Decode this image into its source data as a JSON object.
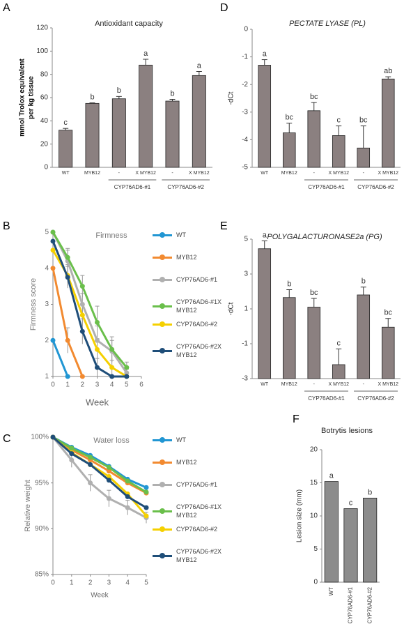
{
  "chart_data": [
    {
      "type": "bar",
      "panel": "A",
      "title": "Antioxidant capacity",
      "ylabel": [
        "mmol Trolox equivalent",
        "per kg tissue"
      ],
      "categories": [
        "WT",
        "MYB12",
        "-",
        "X MYB12",
        "-",
        "X MYB12"
      ],
      "groups": [
        {
          "name": "CYP76AD6-#1",
          "members": [
            2,
            3
          ]
        },
        {
          "name": "CYP76AD6-#2",
          "members": [
            4,
            5
          ]
        }
      ],
      "values": [
        32,
        55,
        59,
        88,
        57,
        79
      ],
      "errors": [
        1.5,
        0.5,
        2,
        5,
        1.5,
        3.5
      ],
      "annotations": [
        "c",
        "b",
        "b",
        "a",
        "b",
        "a"
      ],
      "color": "#8b8080",
      "ylim": [
        0,
        120
      ],
      "yticks": [
        0,
        20,
        40,
        60,
        80,
        100,
        120
      ]
    },
    {
      "type": "line",
      "panel": "B",
      "title": "Firmness",
      "ylabel": "Firmness score",
      "xlabel": "Week",
      "x": [
        0,
        1,
        2,
        3,
        4,
        5
      ],
      "xlim": [
        0,
        6
      ],
      "xticks": [
        0,
        1,
        2,
        3,
        4,
        5,
        6
      ],
      "ylim": [
        1,
        5
      ],
      "yticks": [
        1,
        2,
        3,
        4,
        5
      ],
      "series": [
        {
          "name": "WT",
          "color": "#2196d3",
          "values": [
            2,
            1,
            null,
            null,
            null,
            null
          ]
        },
        {
          "name": "MYB12",
          "color": "#f28a30",
          "values": [
            4,
            2,
            1,
            null,
            null,
            null
          ],
          "errors": [
            null,
            0.35,
            null,
            null,
            null,
            null
          ]
        },
        {
          "name": "CYP76AD6-#1",
          "color": "#b0b0b0",
          "values": [
            5,
            4.2,
            3,
            2,
            1.7,
            1.1
          ],
          "errors": [
            null,
            0.3,
            0.3,
            0.4,
            0.3,
            0.1
          ]
        },
        {
          "name": "CYP76AD6-#1XMYB12",
          "color": "#6abf4b",
          "values": [
            5,
            4.3,
            3.5,
            2.5,
            1.75,
            1.25
          ],
          "errors": [
            null,
            0.25,
            0.3,
            0.45,
            0.35,
            0.15
          ]
        },
        {
          "name": "CYP76AD6-#2",
          "color": "#f5d000",
          "values": [
            4.5,
            3.8,
            2.7,
            1.75,
            1.25,
            1
          ],
          "errors": [
            null,
            0.3,
            0.3,
            0.3,
            0.2,
            null
          ]
        },
        {
          "name": "CYP76AD6-#2XMYB12",
          "color": "#1f4e79",
          "values": [
            4.75,
            3.75,
            2.25,
            1.25,
            1,
            1
          ],
          "errors": [
            null,
            0.3,
            0.35,
            0.25,
            null,
            null
          ]
        }
      ]
    },
    {
      "type": "line",
      "panel": "C",
      "title": "Water loss",
      "ylabel": "Relative weight",
      "xlabel": "Week",
      "x": [
        0,
        1,
        2,
        3,
        4,
        5
      ],
      "xlim": [
        0,
        5
      ],
      "xticks": [
        0,
        1,
        2,
        3,
        4,
        5
      ],
      "ylim": [
        85,
        100
      ],
      "yticks": [
        {
          "value": 85,
          "label": "85%"
        },
        {
          "value": 90,
          "label": "90%"
        },
        {
          "value": 95,
          "label": "95%"
        },
        {
          "value": 100,
          "label": "100%"
        }
      ],
      "series": [
        {
          "name": "WT",
          "color": "#2196d3",
          "values": [
            100,
            98.9,
            98,
            96.8,
            95.4,
            94.5
          ]
        },
        {
          "name": "MYB12",
          "color": "#f28a30",
          "values": [
            100,
            98.6,
            97.5,
            96.3,
            95,
            93.9
          ]
        },
        {
          "name": "CYP76AD6-#1",
          "color": "#b0b0b0",
          "values": [
            100,
            97.5,
            95,
            93.3,
            92.3,
            91.2
          ],
          "errors": [
            null,
            0.8,
            0.9,
            0.9,
            0.8,
            0.6
          ]
        },
        {
          "name": "CYP76AD6-#1XMYB12",
          "color": "#6abf4b",
          "values": [
            100,
            98.8,
            97.8,
            96.7,
            95.2,
            94
          ]
        },
        {
          "name": "CYP76AD6-#2",
          "color": "#f5d000",
          "values": [
            100,
            98.3,
            97,
            95.7,
            93.8,
            91.4
          ]
        },
        {
          "name": "CYP76AD6-#2XMYB12",
          "color": "#1f4e79",
          "values": [
            100,
            98.2,
            97,
            95.3,
            93.5,
            92.3
          ]
        }
      ]
    },
    {
      "type": "bar",
      "panel": "D",
      "title": "PECTATE LYASE (PL)",
      "ylabel": "-dCt",
      "categories": [
        "WT",
        "MYB12",
        "-",
        "X MYB12",
        "-",
        "X MYB12"
      ],
      "groups": [
        {
          "name": "CYP76AD6-#1",
          "members": [
            2,
            3
          ]
        },
        {
          "name": "CYP76AD6-#2",
          "members": [
            4,
            5
          ]
        }
      ],
      "values": [
        -1.3,
        -3.75,
        -2.95,
        -3.85,
        -4.3,
        -1.8
      ],
      "errors": [
        0.2,
        0.35,
        0.3,
        0.35,
        0.8,
        0.08
      ],
      "annotations": [
        "a",
        "bc",
        "bc",
        "c",
        "bc",
        "ab"
      ],
      "color": "#8b8080",
      "ylim": [
        -5,
        0
      ],
      "yticks": [
        -5,
        -4,
        -3,
        -2,
        -1,
        0
      ]
    },
    {
      "type": "bar",
      "panel": "E",
      "title": "POLYGALACTURONASE2a (PG)",
      "ylabel": "-dCt",
      "categories": [
        "WT",
        "MYB12",
        "-",
        "X MYB12",
        "-",
        "X MYB12"
      ],
      "groups": [
        {
          "name": "CYP76AD6-#1",
          "members": [
            2,
            3
          ]
        },
        {
          "name": "CYP76AD6-#2",
          "members": [
            4,
            5
          ]
        }
      ],
      "values": [
        4.45,
        1.65,
        1.1,
        -2.2,
        1.8,
        -0.05
      ],
      "errors": [
        0.45,
        0.45,
        0.5,
        0.9,
        0.45,
        0.5
      ],
      "annotations": [
        "a",
        "b",
        "bc",
        "c",
        "b",
        "bc"
      ],
      "color": "#8b8080",
      "ylim": [
        -3,
        5
      ],
      "yticks": [
        -3,
        -1,
        1,
        3,
        5
      ]
    },
    {
      "type": "bar",
      "panel": "F",
      "title": "Botrytis lesions",
      "ylabel": "Lesion size (mm)",
      "categories": [
        "WT",
        "CYP76AD6-#1",
        "CYP76AD6-#2"
      ],
      "values": [
        15.2,
        11.1,
        12.7
      ],
      "annotations": [
        "a",
        "c",
        "b"
      ],
      "color": "#8c8c8c",
      "ylim": [
        0,
        20
      ],
      "yticks": [
        0,
        5,
        10,
        15,
        20
      ]
    }
  ]
}
